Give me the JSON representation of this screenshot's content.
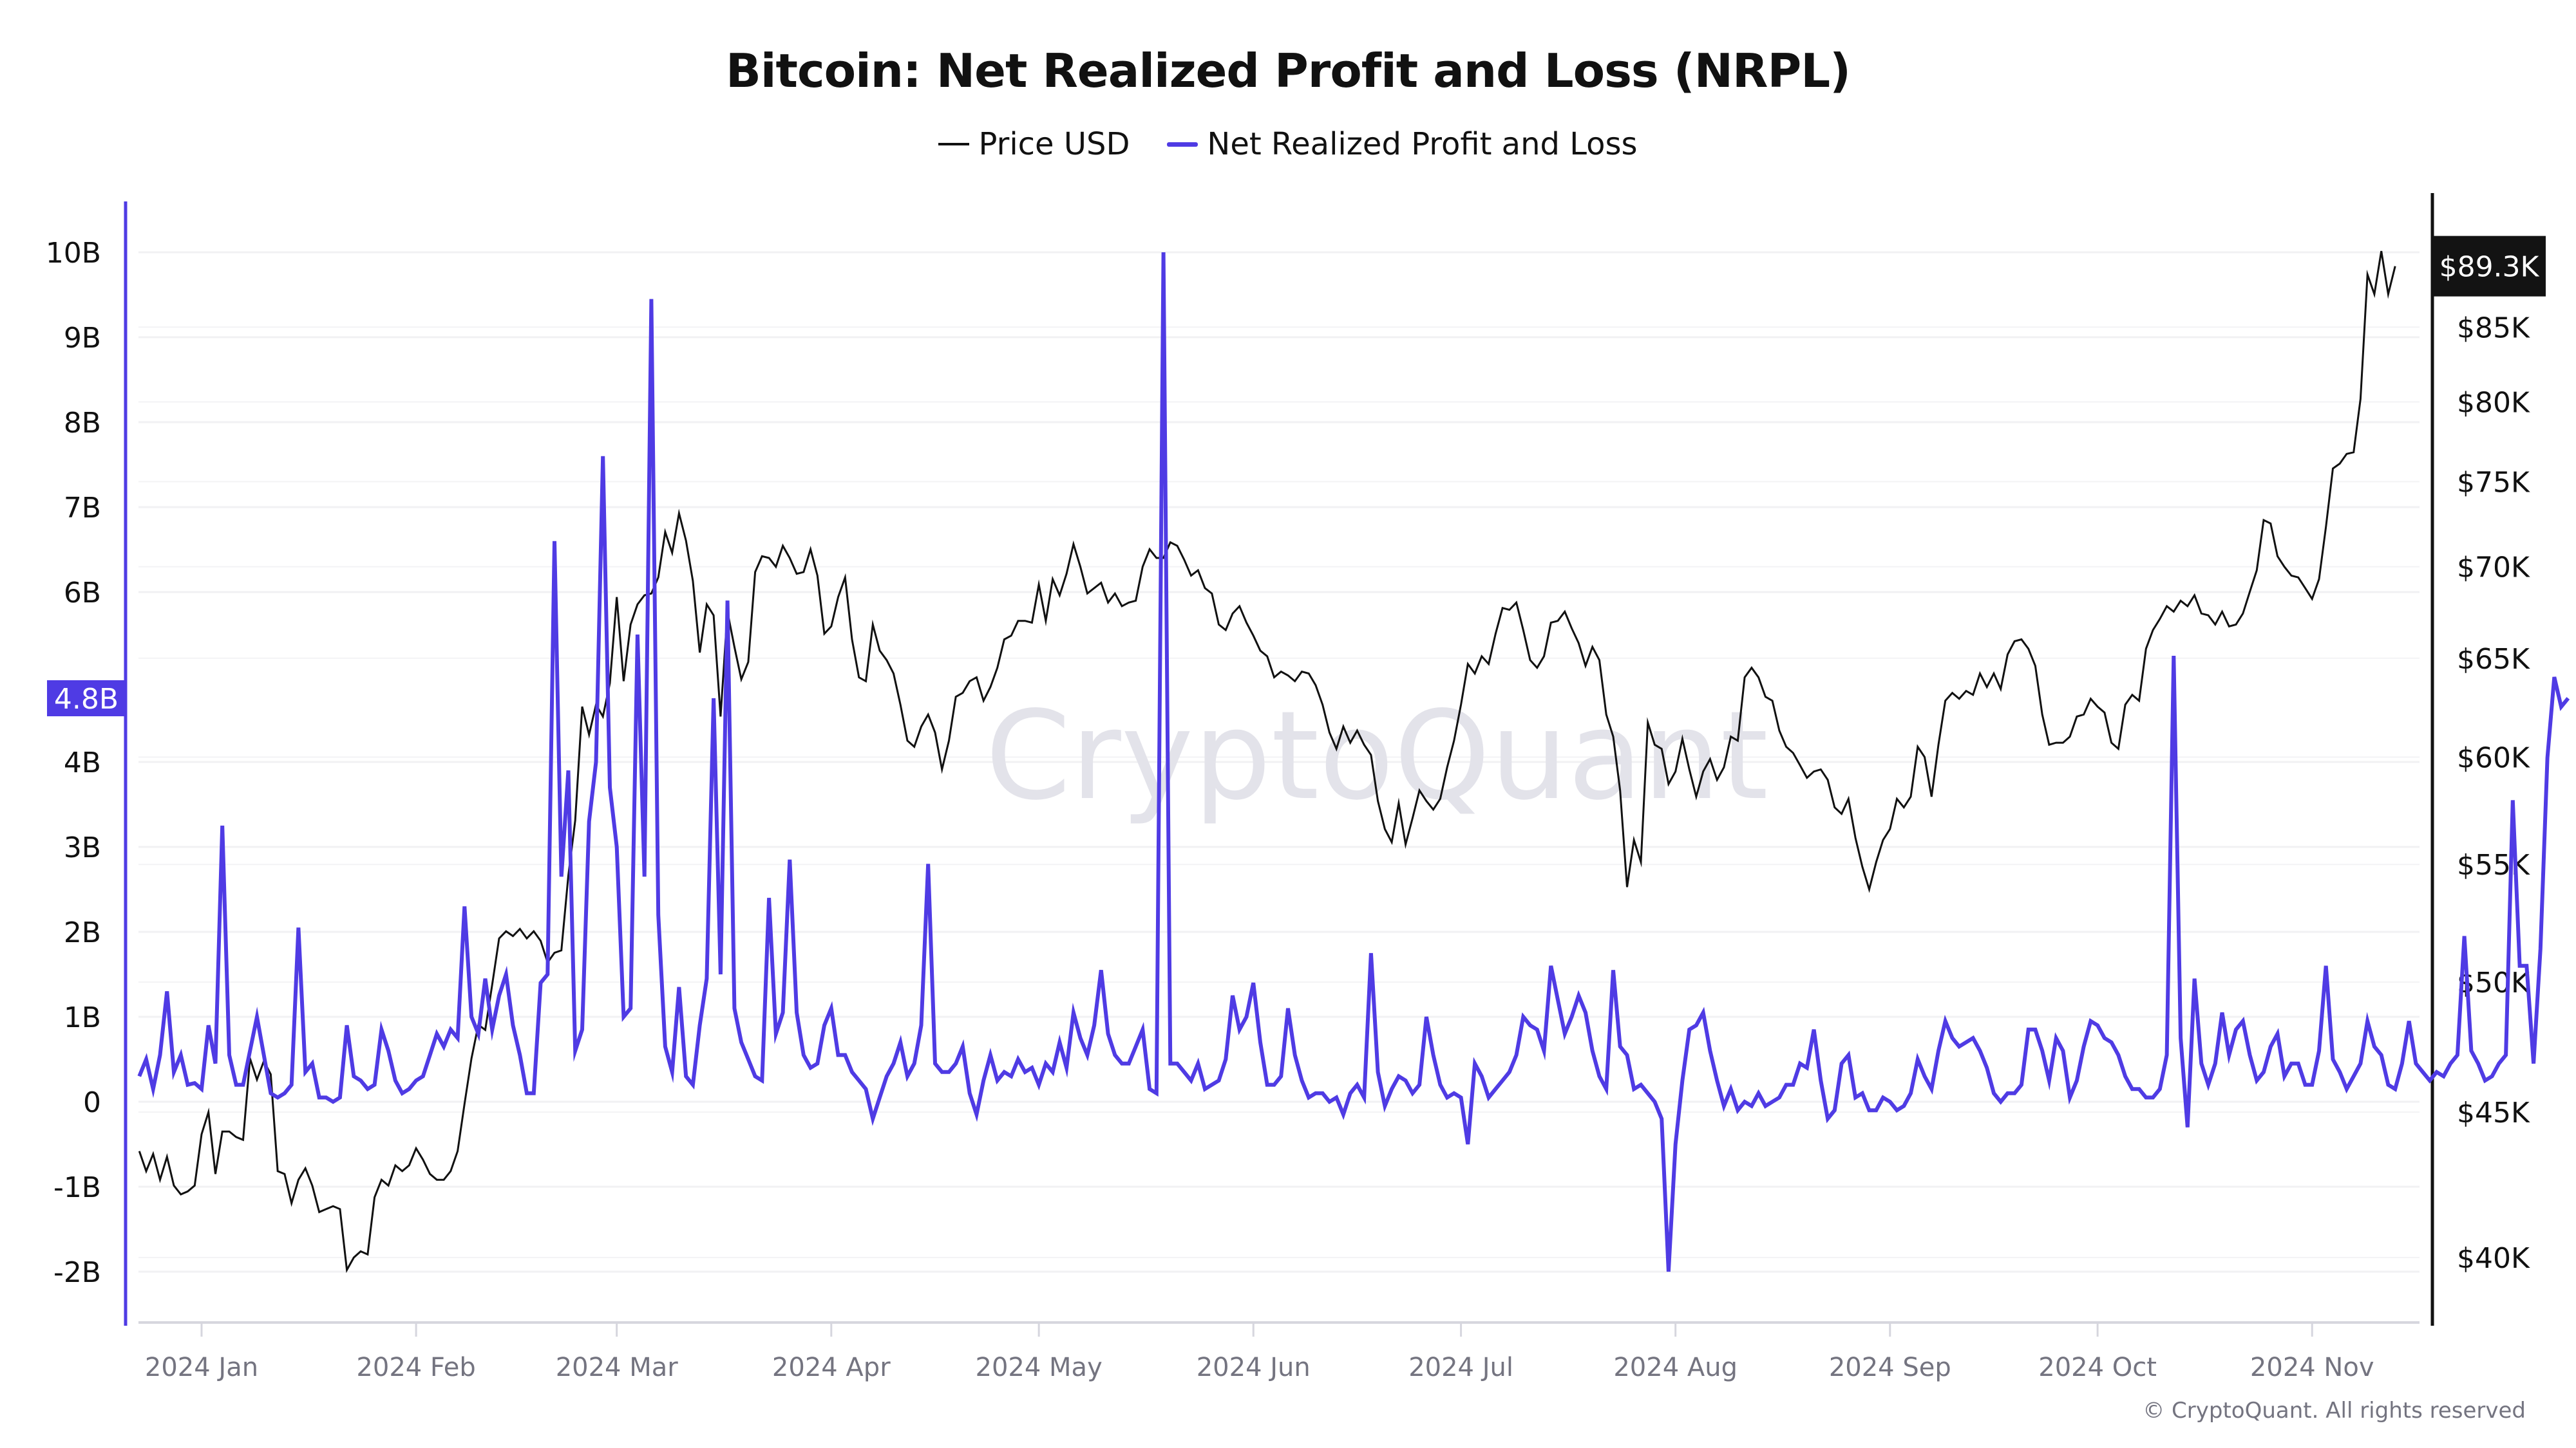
{
  "chart_data": {
    "type": "line",
    "title": "Bitcoin: Net Realized Profit and Loss (NRPL)",
    "legend_position": "top-center",
    "grid": true,
    "watermark": "CryptoQuant",
    "copyright": "© CryptoQuant. All rights reserved",
    "x_start_date": "2023-12-23",
    "x_end_date": "2024-11-14",
    "x_tick_labels": [
      "2024 Jan",
      "2024 Feb",
      "2024 Mar",
      "2024 Apr",
      "2024 May",
      "2024 Jun",
      "2024 Jul",
      "2024 Aug",
      "2024 Sep",
      "2024 Oct",
      "2024 Nov"
    ],
    "x_tick_dates": [
      "2024-01-01",
      "2024-02-01",
      "2024-03-01",
      "2024-04-01",
      "2024-05-01",
      "2024-06-01",
      "2024-07-01",
      "2024-08-01",
      "2024-09-01",
      "2024-10-01",
      "2024-11-01"
    ],
    "left_axis": {
      "label": "Net Realized Profit and Loss",
      "ylim": [
        -2.6,
        10.6
      ],
      "tick_values": [
        10,
        9,
        8,
        7,
        6,
        4,
        3,
        2,
        1,
        0,
        -1,
        -2
      ],
      "tick_labels": [
        "10B",
        "9B",
        "8B",
        "7B",
        "6B",
        "4B",
        "3B",
        "2B",
        "1B",
        "0",
        "-1B",
        "-2B"
      ],
      "current_value_label": "4.8B",
      "color": "#4f3be4"
    },
    "right_axis": {
      "label": "Price USD",
      "scale": "log",
      "ylim": [
        37700,
        95000
      ],
      "tick_values": [
        85000,
        80000,
        75000,
        70000,
        65000,
        60000,
        55000,
        50000,
        45000,
        40000
      ],
      "tick_labels": [
        "$85K",
        "$80K",
        "$75K",
        "$70K",
        "$65K",
        "$60K",
        "$55K",
        "$50K",
        "$45K",
        "$40K"
      ],
      "current_value_label": "$89.3K",
      "color": "#111111"
    },
    "series": [
      {
        "name": "Price USD",
        "axis": "right",
        "color": "#111111",
        "values": [
          43600,
          42900,
          43500,
          42600,
          43400,
          42400,
          42100,
          42200,
          42400,
          44200,
          45000,
          42800,
          44300,
          44300,
          44100,
          44000,
          47000,
          46200,
          46900,
          46400,
          42900,
          42800,
          41800,
          42600,
          43000,
          42400,
          41500,
          41600,
          41700,
          41600,
          39600,
          40000,
          40200,
          40100,
          42000,
          42600,
          42400,
          43100,
          42900,
          43100,
          43700,
          43300,
          42800,
          42600,
          42600,
          42900,
          43600,
          45300,
          47000,
          48300,
          48100,
          49900,
          51800,
          52100,
          51900,
          52200,
          51800,
          52100,
          51700,
          50800,
          51200,
          51300,
          54500,
          57000,
          62500,
          61100,
          62600,
          62000,
          63700,
          68300,
          63800,
          66800,
          67900,
          68400,
          68500,
          69400,
          72000,
          70800,
          73100,
          71500,
          69200,
          65300,
          67900,
          67300,
          62000,
          67500,
          65600,
          63900,
          64800,
          69700,
          70600,
          70500,
          70000,
          71200,
          70500,
          69600,
          69700,
          71000,
          69500,
          66300,
          66700,
          68300,
          69400,
          66000,
          64000,
          63800,
          66800,
          65400,
          64900,
          64200,
          62600,
          60800,
          60500,
          61500,
          62100,
          61200,
          59400,
          60800,
          63000,
          63200,
          63800,
          64000,
          62800,
          63500,
          64500,
          66000,
          66200,
          67000,
          67000,
          66900,
          69000,
          67000,
          69300,
          68400,
          69600,
          71300,
          70000,
          68500,
          68800,
          69100,
          68000,
          68500,
          67800,
          68000,
          68100,
          70000,
          71000,
          70500,
          70500,
          71400,
          71200,
          70400,
          69500,
          69800,
          68800,
          68500,
          66800,
          66500,
          67400,
          67800,
          66900,
          66200,
          65400,
          65100,
          64000,
          64300,
          64100,
          63800,
          64300,
          64200,
          63600,
          62600,
          61200,
          60400,
          61500,
          60700,
          61300,
          60600,
          60100,
          57900,
          56600,
          56000,
          57800,
          55900,
          57100,
          58400,
          57900,
          57500,
          58000,
          59500,
          60800,
          62600,
          64700,
          64200,
          65100,
          64700,
          66300,
          67700,
          67600,
          68000,
          66500,
          64900,
          64500,
          65100,
          66900,
          67000,
          67500,
          66600,
          65800,
          64600,
          65600,
          64900,
          62100,
          61000,
          58400,
          54000,
          56100,
          55100,
          61700,
          60600,
          60400,
          58700,
          59300,
          60900,
          59400,
          58100,
          59300,
          59900,
          58900,
          59500,
          61000,
          60800,
          64000,
          64500,
          64000,
          63000,
          62800,
          61300,
          60500,
          60200,
          59600,
          59000,
          59300,
          59400,
          58900,
          57600,
          57300,
          58000,
          56200,
          54900,
          53900,
          55100,
          56100,
          56600,
          58000,
          57600,
          58100,
          60500,
          60000,
          58100,
          60600,
          62800,
          63200,
          62900,
          63300,
          63100,
          64200,
          63500,
          64200,
          63400,
          65200,
          65900,
          66000,
          65500,
          64600,
          62100,
          60600,
          60700,
          60700,
          61000,
          62000,
          62100,
          62900,
          62500,
          62200,
          60700,
          60400,
          62600,
          63100,
          62800,
          65500,
          66500,
          67100,
          67800,
          67500,
          68100,
          67800,
          68400,
          67400,
          67300,
          66800,
          67500,
          66700,
          66800,
          67400,
          68600,
          69800,
          72700,
          72500,
          70600,
          70000,
          69500,
          69400,
          68800,
          68200,
          69300,
          72300,
          75800,
          76100,
          76700,
          76800,
          80200,
          88700,
          87300,
          90400,
          87300,
          89300
        ]
      },
      {
        "name": "Net Realized Profit and Loss",
        "axis": "left",
        "color": "#4f3be4",
        "values": [
          0.3,
          0.5,
          0.15,
          0.55,
          1.3,
          0.35,
          0.55,
          0.2,
          0.22,
          0.15,
          0.9,
          0.45,
          3.25,
          0.55,
          0.2,
          0.2,
          0.6,
          1.0,
          0.55,
          0.1,
          0.05,
          0.1,
          0.2,
          2.05,
          0.35,
          0.45,
          0.05,
          0.05,
          0.0,
          0.05,
          0.9,
          0.3,
          0.25,
          0.15,
          0.2,
          0.85,
          0.6,
          0.25,
          0.1,
          0.15,
          0.25,
          0.3,
          0.55,
          0.8,
          0.65,
          0.85,
          0.75,
          2.3,
          1.0,
          0.8,
          1.45,
          0.85,
          1.25,
          1.5,
          0.9,
          0.55,
          0.1,
          0.1,
          1.4,
          1.5,
          6.6,
          2.65,
          3.9,
          0.6,
          0.85,
          3.3,
          4.0,
          7.6,
          3.7,
          3.0,
          1.0,
          1.1,
          5.5,
          2.65,
          9.45,
          2.2,
          0.65,
          0.35,
          1.35,
          0.3,
          0.2,
          0.9,
          1.45,
          4.75,
          1.5,
          5.9,
          1.1,
          0.7,
          0.5,
          0.3,
          0.25,
          2.4,
          0.8,
          1.05,
          2.85,
          1.05,
          0.55,
          0.4,
          0.45,
          0.9,
          1.1,
          0.55,
          0.55,
          0.35,
          0.25,
          0.15,
          -0.2,
          0.05,
          0.3,
          0.45,
          0.7,
          0.3,
          0.45,
          0.9,
          2.8,
          0.45,
          0.35,
          0.35,
          0.45,
          0.65,
          0.1,
          -0.15,
          0.25,
          0.55,
          0.25,
          0.35,
          0.3,
          0.5,
          0.35,
          0.4,
          0.2,
          0.45,
          0.35,
          0.7,
          0.4,
          1.05,
          0.75,
          0.55,
          0.9,
          1.55,
          0.8,
          0.55,
          0.45,
          0.45,
          0.65,
          0.85,
          0.15,
          0.1,
          10.0,
          0.45,
          0.45,
          0.35,
          0.25,
          0.45,
          0.15,
          0.2,
          0.25,
          0.5,
          1.25,
          0.85,
          1.0,
          1.4,
          0.7,
          0.2,
          0.2,
          0.3,
          1.1,
          0.55,
          0.25,
          0.05,
          0.1,
          0.1,
          0.0,
          0.05,
          -0.15,
          0.1,
          0.2,
          0.05,
          1.75,
          0.35,
          -0.05,
          0.15,
          0.3,
          0.25,
          0.1,
          0.2,
          1.0,
          0.55,
          0.2,
          0.05,
          0.1,
          0.05,
          -0.5,
          0.45,
          0.3,
          0.05,
          0.15,
          0.25,
          0.35,
          0.55,
          1.0,
          0.9,
          0.85,
          0.6,
          1.6,
          1.2,
          0.8,
          1.0,
          1.25,
          1.05,
          0.6,
          0.3,
          0.15,
          1.55,
          0.65,
          0.55,
          0.15,
          0.2,
          0.1,
          0.0,
          -0.2,
          -2.0,
          -0.5,
          0.25,
          0.85,
          0.9,
          1.05,
          0.6,
          0.25,
          -0.05,
          0.15,
          -0.1,
          0.0,
          -0.05,
          0.1,
          -0.05,
          0.0,
          0.05,
          0.2,
          0.2,
          0.45,
          0.4,
          0.85,
          0.25,
          -0.2,
          -0.1,
          0.45,
          0.55,
          0.05,
          0.1,
          -0.1,
          -0.1,
          0.05,
          0.0,
          -0.1,
          -0.05,
          0.1,
          0.5,
          0.3,
          0.15,
          0.6,
          0.95,
          0.75,
          0.65,
          0.7,
          0.75,
          0.6,
          0.4,
          0.1,
          0.0,
          0.1,
          0.1,
          0.2,
          0.85,
          0.85,
          0.6,
          0.25,
          0.75,
          0.6,
          0.05,
          0.25,
          0.65,
          0.95,
          0.9,
          0.75,
          0.7,
          0.55,
          0.3,
          0.15,
          0.15,
          0.05,
          0.05,
          0.15,
          0.55,
          5.25,
          0.75,
          -0.3,
          1.45,
          0.45,
          0.2,
          0.45,
          1.05,
          0.55,
          0.85,
          0.95,
          0.55,
          0.25,
          0.35,
          0.65,
          0.8,
          0.3,
          0.45,
          0.45,
          0.2,
          0.2,
          0.6,
          1.6,
          0.5,
          0.35,
          0.15,
          0.3,
          0.45,
          0.95,
          0.65,
          0.55,
          0.2,
          0.15,
          0.45,
          0.95,
          0.45,
          0.35,
          0.25,
          0.35,
          0.3,
          0.45,
          0.55,
          1.95,
          0.6,
          0.45,
          0.25,
          0.3,
          0.45,
          0.55,
          3.55,
          1.6,
          1.6,
          0.45,
          1.8,
          4.05,
          5.0,
          4.65,
          4.75
        ]
      }
    ]
  },
  "legend": {
    "items": [
      {
        "label": "Price USD",
        "color": "#111111"
      },
      {
        "label": "Net Realized Profit and Loss",
        "color": "#4f3be4"
      }
    ]
  }
}
